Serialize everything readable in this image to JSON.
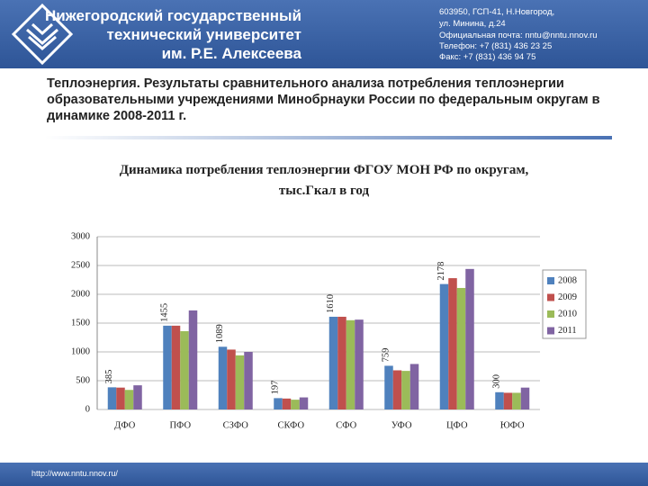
{
  "header": {
    "title": [
      "Нижегородский государственный",
      "технический университет",
      "им. Р.Е. Алексеева"
    ],
    "contacts": [
      "603950, ГСП-41, Н.Новгород,",
      "ул. Минина, д.24",
      "Официальная почта: nntu@nntu.nnov.ru",
      "Телефон: +7 (831) 436 23 25",
      "Факс: +7 (831) 436 94 75"
    ]
  },
  "heading": "Теплоэнергия. Результаты сравнительного анализа потребления теплоэнергии образовательными учреждениями Минобрнауки России по федеральным округам в динамике 2008-2011 г.",
  "footer": "http://www.nntu.nnov.ru/",
  "chart_data": {
    "type": "bar",
    "title": "Динамика потребления теплоэнергии ФГОУ МОН РФ по округам, тыс.Гкал в год",
    "categories": [
      "ДФО",
      "ПФО",
      "СЗФО",
      "СКФО",
      "СФО",
      "УФО",
      "ЦФО",
      "ЮФО"
    ],
    "series": [
      {
        "name": "2008",
        "color": "#4f81bd",
        "values": [
          385,
          1455,
          1089,
          197,
          1610,
          759,
          2178,
          300
        ]
      },
      {
        "name": "2009",
        "color": "#c0504d",
        "values": [
          380,
          1455,
          1040,
          190,
          1610,
          680,
          2280,
          290
        ]
      },
      {
        "name": "2010",
        "color": "#9bbb59",
        "values": [
          340,
          1360,
          940,
          170,
          1550,
          670,
          2110,
          290
        ]
      },
      {
        "name": "2011",
        "color": "#8064a2",
        "values": [
          420,
          1720,
          1000,
          210,
          1560,
          790,
          2440,
          380
        ]
      }
    ],
    "labeled_series": 0,
    "ylim": [
      0,
      3000
    ],
    "yticks": [
      0,
      500,
      1000,
      1500,
      2000,
      2500,
      3000
    ],
    "grid": true,
    "legend": "right"
  }
}
